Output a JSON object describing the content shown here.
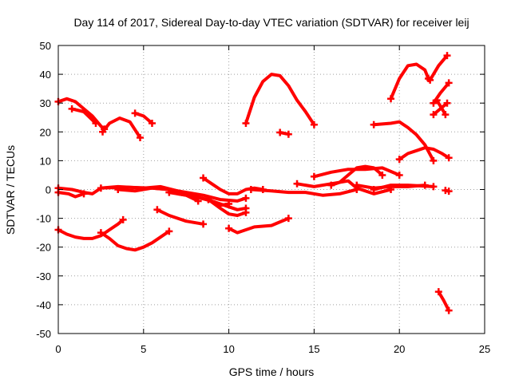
{
  "chart_data": {
    "type": "line",
    "title": "Day 114 of 2017, Sidereal Day-to-day VTEC variation (SDTVAR) for receiver leij",
    "xlabel": "GPS time / hours",
    "ylabel": "SDTVAR / TECUs",
    "xlim": [
      0,
      25
    ],
    "ylim": [
      -50,
      50
    ],
    "xticks": [
      "0",
      "5",
      "10",
      "15",
      "20",
      "25"
    ],
    "yticks": [
      "50",
      "40",
      "30",
      "20",
      "10",
      "0",
      "-10",
      "-20",
      "-30",
      "-40",
      "-50"
    ],
    "grid": true,
    "color": "#ff0000",
    "series": [
      {
        "points": [
          [
            0,
            30.5
          ],
          [
            0.5,
            31.5
          ],
          [
            1,
            30.5
          ],
          [
            1.5,
            28
          ],
          [
            2,
            25.5
          ],
          [
            2.5,
            22
          ],
          [
            2.7,
            21
          ]
        ]
      },
      {
        "points": [
          [
            0.8,
            28
          ],
          [
            1.5,
            27
          ],
          [
            2.2,
            23
          ]
        ]
      },
      {
        "points": [
          [
            2.6,
            20
          ],
          [
            3,
            23
          ],
          [
            3.6,
            24.8
          ],
          [
            4.2,
            23.5
          ],
          [
            4.8,
            18
          ]
        ]
      },
      {
        "points": [
          [
            4.5,
            26.5
          ],
          [
            5,
            25.5
          ],
          [
            5.5,
            23
          ]
        ]
      },
      {
        "points": [
          [
            0,
            0.5
          ],
          [
            0.8,
            0
          ],
          [
            1.5,
            -1
          ],
          [
            2,
            -1.5
          ],
          [
            2.5,
            0.5
          ],
          [
            3.5,
            1
          ],
          [
            5,
            0.5
          ],
          [
            6,
            1
          ],
          [
            7,
            -0.5
          ],
          [
            8,
            -2.5
          ],
          [
            8.8,
            -3.5
          ],
          [
            9.5,
            -5.5
          ],
          [
            10,
            -5
          ]
        ]
      },
      {
        "points": [
          [
            0,
            -1
          ],
          [
            0.6,
            -1.5
          ],
          [
            1,
            -2.5
          ],
          [
            1.5,
            -1.5
          ]
        ]
      },
      {
        "points": [
          [
            2.5,
            0.5
          ],
          [
            4,
            0.8
          ],
          [
            5.5,
            0.5
          ],
          [
            6.5,
            0
          ],
          [
            7,
            -1.5
          ],
          [
            8,
            -2.5
          ],
          [
            9,
            -4
          ],
          [
            10,
            -6
          ],
          [
            10.5,
            -7
          ],
          [
            11,
            -6.5
          ]
        ]
      },
      {
        "points": [
          [
            3.5,
            0
          ],
          [
            4.5,
            -0.5
          ],
          [
            5.5,
            0.5
          ],
          [
            6.5,
            0
          ],
          [
            7.5,
            -1
          ],
          [
            8.5,
            -2
          ],
          [
            9.5,
            -3.5
          ],
          [
            10.5,
            -4
          ],
          [
            11,
            -3
          ]
        ]
      },
      {
        "points": [
          [
            6.5,
            -1
          ],
          [
            7.5,
            -2
          ],
          [
            8.2,
            -4
          ]
        ]
      },
      {
        "points": [
          [
            5.8,
            -7
          ],
          [
            6.5,
            -9
          ],
          [
            7.5,
            -11
          ],
          [
            8.5,
            -12
          ]
        ]
      },
      {
        "points": [
          [
            8.5,
            4
          ],
          [
            9,
            2
          ],
          [
            9.5,
            0
          ],
          [
            10,
            -1.5
          ],
          [
            10.5,
            -1.5
          ],
          [
            11,
            0
          ],
          [
            11.5,
            0.5
          ],
          [
            12,
            0
          ]
        ]
      },
      {
        "points": [
          [
            8.8,
            -3.5
          ],
          [
            9.5,
            -6.5
          ],
          [
            10,
            -8.5
          ],
          [
            10.5,
            -9
          ],
          [
            11,
            -8
          ]
        ]
      },
      {
        "points": [
          [
            11.3,
            0
          ],
          [
            12.5,
            -0.5
          ],
          [
            13.5,
            -1
          ],
          [
            14.5,
            -1
          ],
          [
            15.5,
            -2
          ],
          [
            16.5,
            -1.5
          ],
          [
            17.5,
            0
          ]
        ]
      },
      {
        "points": [
          [
            14,
            2
          ],
          [
            15,
            1
          ],
          [
            16,
            2
          ],
          [
            17,
            3
          ],
          [
            17.5,
            0.5
          ],
          [
            18.5,
            -1.5
          ],
          [
            19.5,
            0
          ]
        ]
      },
      {
        "points": [
          [
            15,
            4.5
          ],
          [
            16,
            6
          ],
          [
            17,
            7
          ],
          [
            18,
            7
          ],
          [
            19,
            7.5
          ],
          [
            20,
            5
          ]
        ]
      },
      {
        "points": [
          [
            16,
            1.5
          ],
          [
            16.5,
            2.5
          ],
          [
            17,
            5
          ],
          [
            17.5,
            7.5
          ],
          [
            18,
            8
          ],
          [
            18.5,
            7.5
          ],
          [
            19,
            5
          ]
        ]
      },
      {
        "points": [
          [
            17.5,
            1.5
          ],
          [
            18.5,
            0.5
          ],
          [
            19.5,
            1
          ],
          [
            20.5,
            1
          ],
          [
            21.5,
            1.5
          ]
        ]
      },
      {
        "points": [
          [
            18.5,
            0
          ],
          [
            19.5,
            1.5
          ],
          [
            20.5,
            1.5
          ],
          [
            21.5,
            1.2
          ],
          [
            22,
            1
          ]
        ]
      },
      {
        "points": [
          [
            10,
            -13.5
          ],
          [
            10.5,
            -15
          ],
          [
            11.5,
            -13
          ],
          [
            12.5,
            -12.5
          ],
          [
            13.5,
            -10
          ]
        ]
      },
      {
        "points": [
          [
            0,
            -14
          ],
          [
            0.5,
            -15.5
          ],
          [
            1,
            -16.5
          ],
          [
            1.5,
            -17
          ],
          [
            2,
            -17
          ],
          [
            2.5,
            -16
          ],
          [
            3,
            -14
          ],
          [
            3.5,
            -12
          ],
          [
            3.8,
            -10.5
          ]
        ]
      },
      {
        "points": [
          [
            2.5,
            -15
          ],
          [
            3,
            -17
          ],
          [
            3.5,
            -19.5
          ],
          [
            4,
            -20.5
          ],
          [
            4.5,
            -21
          ],
          [
            5,
            -20
          ],
          [
            5.5,
            -18.5
          ],
          [
            6.5,
            -14.5
          ]
        ]
      },
      {
        "points": [
          [
            11,
            23
          ],
          [
            11.5,
            32
          ],
          [
            12,
            37.5
          ],
          [
            12.5,
            40
          ],
          [
            13,
            39.5
          ],
          [
            13.5,
            36
          ],
          [
            14,
            31
          ],
          [
            14.5,
            27
          ],
          [
            15,
            22.5
          ]
        ]
      },
      {
        "points": [
          [
            13,
            19.8
          ],
          [
            13.5,
            19.2
          ]
        ]
      },
      {
        "points": [
          [
            18.5,
            22.5
          ],
          [
            19.5,
            23
          ],
          [
            20,
            23.5
          ],
          [
            20.5,
            21.5
          ],
          [
            21,
            19
          ],
          [
            21.5,
            15.5
          ],
          [
            22,
            10
          ]
        ]
      },
      {
        "points": [
          [
            20,
            10.5
          ],
          [
            20.5,
            12.5
          ],
          [
            21,
            13.5
          ],
          [
            21.5,
            14.5
          ],
          [
            22,
            14
          ],
          [
            22.5,
            12.5
          ],
          [
            22.9,
            11
          ]
        ]
      },
      {
        "points": [
          [
            19.5,
            31.5
          ],
          [
            20,
            38.5
          ],
          [
            20.5,
            43
          ],
          [
            21,
            43.5
          ],
          [
            21.5,
            41.5
          ],
          [
            21.7,
            38.5
          ]
        ]
      },
      {
        "points": [
          [
            21.8,
            38
          ],
          [
            22.3,
            43
          ],
          [
            22.8,
            46.5
          ]
        ]
      },
      {
        "points": [
          [
            22,
            26
          ],
          [
            22.8,
            30
          ]
        ]
      },
      {
        "points": [
          [
            22,
            30
          ],
          [
            22.4,
            33.5
          ],
          [
            22.9,
            37
          ]
        ]
      },
      {
        "points": [
          [
            22.2,
            31
          ],
          [
            22.7,
            26
          ]
        ]
      },
      {
        "points": [
          [
            22.7,
            -0.3
          ],
          [
            22.9,
            -0.6
          ]
        ]
      },
      {
        "points": [
          [
            22.3,
            -35.5
          ],
          [
            22.6,
            -38.5
          ],
          [
            22.9,
            -42
          ]
        ]
      }
    ]
  }
}
